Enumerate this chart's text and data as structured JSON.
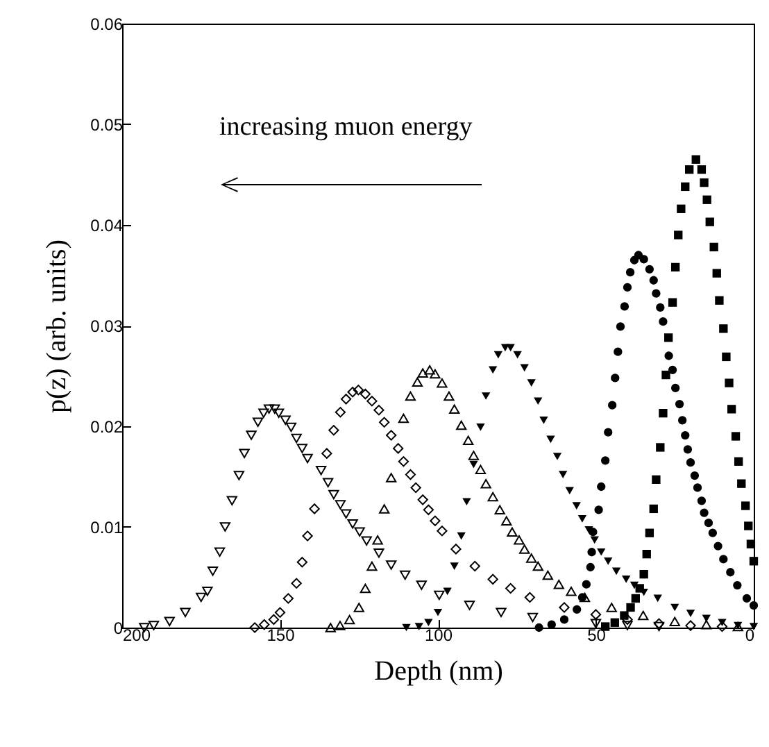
{
  "chart_data": {
    "type": "scatter",
    "xlabel": "Depth (nm)",
    "ylabel": "p(z) (arb. units)",
    "xlim": [
      200,
      0
    ],
    "xticks": [
      200,
      150,
      100,
      50,
      0
    ],
    "ylim": [
      0,
      0.06
    ],
    "yticks": [
      0,
      0.01,
      0.02,
      0.03,
      0.04,
      0.05,
      0.06
    ],
    "grid": false,
    "annotations": [
      "increasing muon energy"
    ],
    "series": [
      {
        "color": "#000000",
        "marker": "triangle-down-open",
        "x": [
          193,
          190,
          185,
          180,
          175,
          173,
          171.3,
          169.1,
          167.4,
          165.2,
          163,
          161.3,
          159.1,
          157,
          155.2,
          153.5,
          151.7,
          150.4,
          148.3,
          146.5,
          144.8,
          143,
          141.3,
          137,
          134.8,
          133,
          130.9,
          129.1,
          127,
          124.8,
          122.6,
          118.7,
          114.8,
          110.4,
          105.2,
          99.6,
          90,
          80,
          70,
          60,
          50,
          40,
          30
        ],
        "values": [
          0,
          0.0002,
          0.0006,
          0.0015,
          0.003,
          0.0036,
          0.0056,
          0.0075,
          0.01,
          0.0126,
          0.0151,
          0.0173,
          0.0191,
          0.0204,
          0.0213,
          0.0217,
          0.0217,
          0.0213,
          0.0206,
          0.0199,
          0.0188,
          0.0178,
          0.0168,
          0.0156,
          0.0144,
          0.0132,
          0.0122,
          0.0113,
          0.0103,
          0.0095,
          0.0086,
          0.0074,
          0.0062,
          0.0052,
          0.0042,
          0.0032,
          0.0022,
          0.0015,
          0.001,
          null,
          0.0004,
          0.0002,
          0.0001
        ]
      },
      {
        "color": "#000000",
        "marker": "diamond-open",
        "x": [
          158,
          155,
          152,
          150,
          147.4,
          144.8,
          143,
          141.3,
          139.1,
          135.2,
          133,
          130.9,
          129.1,
          127,
          125.2,
          123,
          120.9,
          118.7,
          117,
          114.8,
          112.6,
          110.9,
          108.7,
          107,
          104.8,
          103,
          100.9,
          98.7,
          94.3,
          88.3,
          82.6,
          77,
          70.9,
          60,
          50,
          40,
          30,
          20,
          10
        ],
        "values": [
          0,
          0.0003,
          0.0008,
          0.0015,
          0.0029,
          0.0044,
          0.0065,
          0.0091,
          0.0118,
          0.0173,
          0.0196,
          0.0214,
          0.0227,
          0.0234,
          0.0236,
          0.0232,
          0.0225,
          0.0216,
          0.0204,
          0.0191,
          0.0178,
          0.0165,
          0.0152,
          0.0139,
          0.0127,
          0.0117,
          0.0106,
          0.0096,
          0.0078,
          0.0061,
          0.0048,
          0.0039,
          0.003,
          0.002,
          0.0013,
          0.0008,
          0.0004,
          0.0002,
          0.0001
        ]
      },
      {
        "color": "#000000",
        "marker": "triangle-up-open",
        "x": [
          134,
          131,
          128,
          125,
          123,
          120.9,
          119.1,
          117,
          114.8,
          110.9,
          108.7,
          106.5,
          104.8,
          102.6,
          100.9,
          98.7,
          96.5,
          94.8,
          92.6,
          90.4,
          88.7,
          86.5,
          84.8,
          82.6,
          80.4,
          78.3,
          76.5,
          74.3,
          72.6,
          70.4,
          68.3,
          65.2,
          61.7,
          57.8,
          53.5,
          45,
          35,
          25,
          15,
          5
        ],
        "values": [
          0,
          0.0002,
          0.0008,
          0.002,
          0.0039,
          0.0061,
          0.0087,
          0.0118,
          0.0149,
          0.0208,
          0.023,
          0.0244,
          0.0253,
          0.0256,
          0.0252,
          0.0243,
          0.023,
          0.0217,
          0.0201,
          0.0186,
          0.0171,
          0.0157,
          0.0143,
          0.013,
          0.0117,
          0.0106,
          0.0095,
          0.0087,
          0.0078,
          0.0069,
          0.0061,
          0.0052,
          0.0043,
          0.0036,
          0.003,
          0.002,
          0.0012,
          0.0006,
          0.0003,
          0.0001
        ]
      },
      {
        "color": "#000000",
        "marker": "triangle-down",
        "x": [
          110,
          106,
          103,
          100,
          97,
          94.8,
          92.6,
          90.9,
          88.7,
          86.5,
          84.8,
          82.6,
          80.9,
          78.7,
          77,
          74.8,
          72.6,
          70.4,
          68.3,
          66.5,
          64.3,
          62.2,
          60.4,
          58.3,
          56.1,
          54.3,
          52.2,
          50.4,
          48.3,
          46.1,
          43.5,
          40.4,
          37.8,
          34.8,
          30.4,
          25,
          20,
          15,
          10,
          5,
          0
        ],
        "values": [
          0,
          0.0001,
          0.0005,
          0.0015,
          0.0036,
          0.0061,
          0.0091,
          0.0125,
          0.0162,
          0.0199,
          0.023,
          0.0256,
          0.0271,
          0.0278,
          0.0278,
          0.0271,
          0.0258,
          0.0243,
          0.0225,
          0.0206,
          0.0187,
          0.017,
          0.0152,
          0.0136,
          0.0121,
          0.0108,
          0.0097,
          0.0087,
          0.0075,
          0.0066,
          0.0056,
          0.0048,
          0.0042,
          0.0035,
          0.0029,
          0.002,
          0.0014,
          0.0009,
          0.0005,
          0.0002,
          0.0001
        ]
      },
      {
        "color": "#000000",
        "marker": "circle",
        "x": [
          68,
          64,
          60,
          56,
          54.3,
          53,
          51.7,
          51.3,
          50.9,
          49.1,
          48.3,
          47,
          46.1,
          44.8,
          43.9,
          43,
          42.2,
          40.9,
          40,
          39.1,
          37.8,
          36.5,
          34.8,
          33,
          31.7,
          30.9,
          29.6,
          28.7,
          26.9,
          25.7,
          24.8,
          23.5,
          22.6,
          21.7,
          20.9,
          20,
          18.7,
          17.8,
          16.5,
          15.7,
          14.3,
          13,
          11.3,
          9.6,
          7.4,
          5.2,
          2.2,
          0
        ],
        "values": [
          0,
          0.0003,
          0.0008,
          0.0018,
          0.003,
          0.0043,
          0.006,
          0.0075,
          0.0095,
          0.0117,
          0.014,
          0.0166,
          0.0194,
          0.0221,
          0.0248,
          0.0274,
          0.0299,
          0.0319,
          0.0338,
          0.0353,
          0.0365,
          0.037,
          0.0366,
          0.0356,
          0.0345,
          0.0332,
          0.0318,
          0.0304,
          0.027,
          0.0256,
          0.0238,
          0.0222,
          0.0206,
          0.0191,
          0.0177,
          0.0164,
          0.0151,
          0.0139,
          0.0126,
          0.0114,
          0.0104,
          0.0094,
          0.0081,
          0.0068,
          0.0055,
          0.0042,
          0.0029,
          0.0022
        ]
      },
      {
        "color": "#000000",
        "marker": "square",
        "x": [
          47,
          44,
          41,
          39,
          37.4,
          36.1,
          34.8,
          33.9,
          33,
          31.7,
          30.9,
          29.6,
          28.7,
          27.8,
          27,
          25.7,
          24.8,
          23.9,
          23,
          21.7,
          20.4,
          18.3,
          16.5,
          15.7,
          14.8,
          13.9,
          12.6,
          11.7,
          10.9,
          9.6,
          8.7,
          7.8,
          7,
          5.7,
          4.8,
          3.9,
          2.6,
          1.7,
          0.9,
          0
        ],
        "values": [
          0.0001,
          0.0005,
          0.0012,
          0.002,
          0.0029,
          0.0039,
          0.0053,
          0.0073,
          0.0094,
          0.0118,
          0.0147,
          0.0179,
          0.0213,
          0.0251,
          0.0288,
          0.0323,
          0.0358,
          0.039,
          0.0416,
          0.0438,
          0.0455,
          0.0465,
          0.0455,
          0.0442,
          0.0425,
          0.0403,
          0.0378,
          0.0352,
          0.0325,
          0.0297,
          0.0269,
          0.0243,
          0.0217,
          0.019,
          0.0165,
          0.0143,
          0.0121,
          0.0101,
          0.0083,
          0.0066
        ]
      }
    ]
  }
}
